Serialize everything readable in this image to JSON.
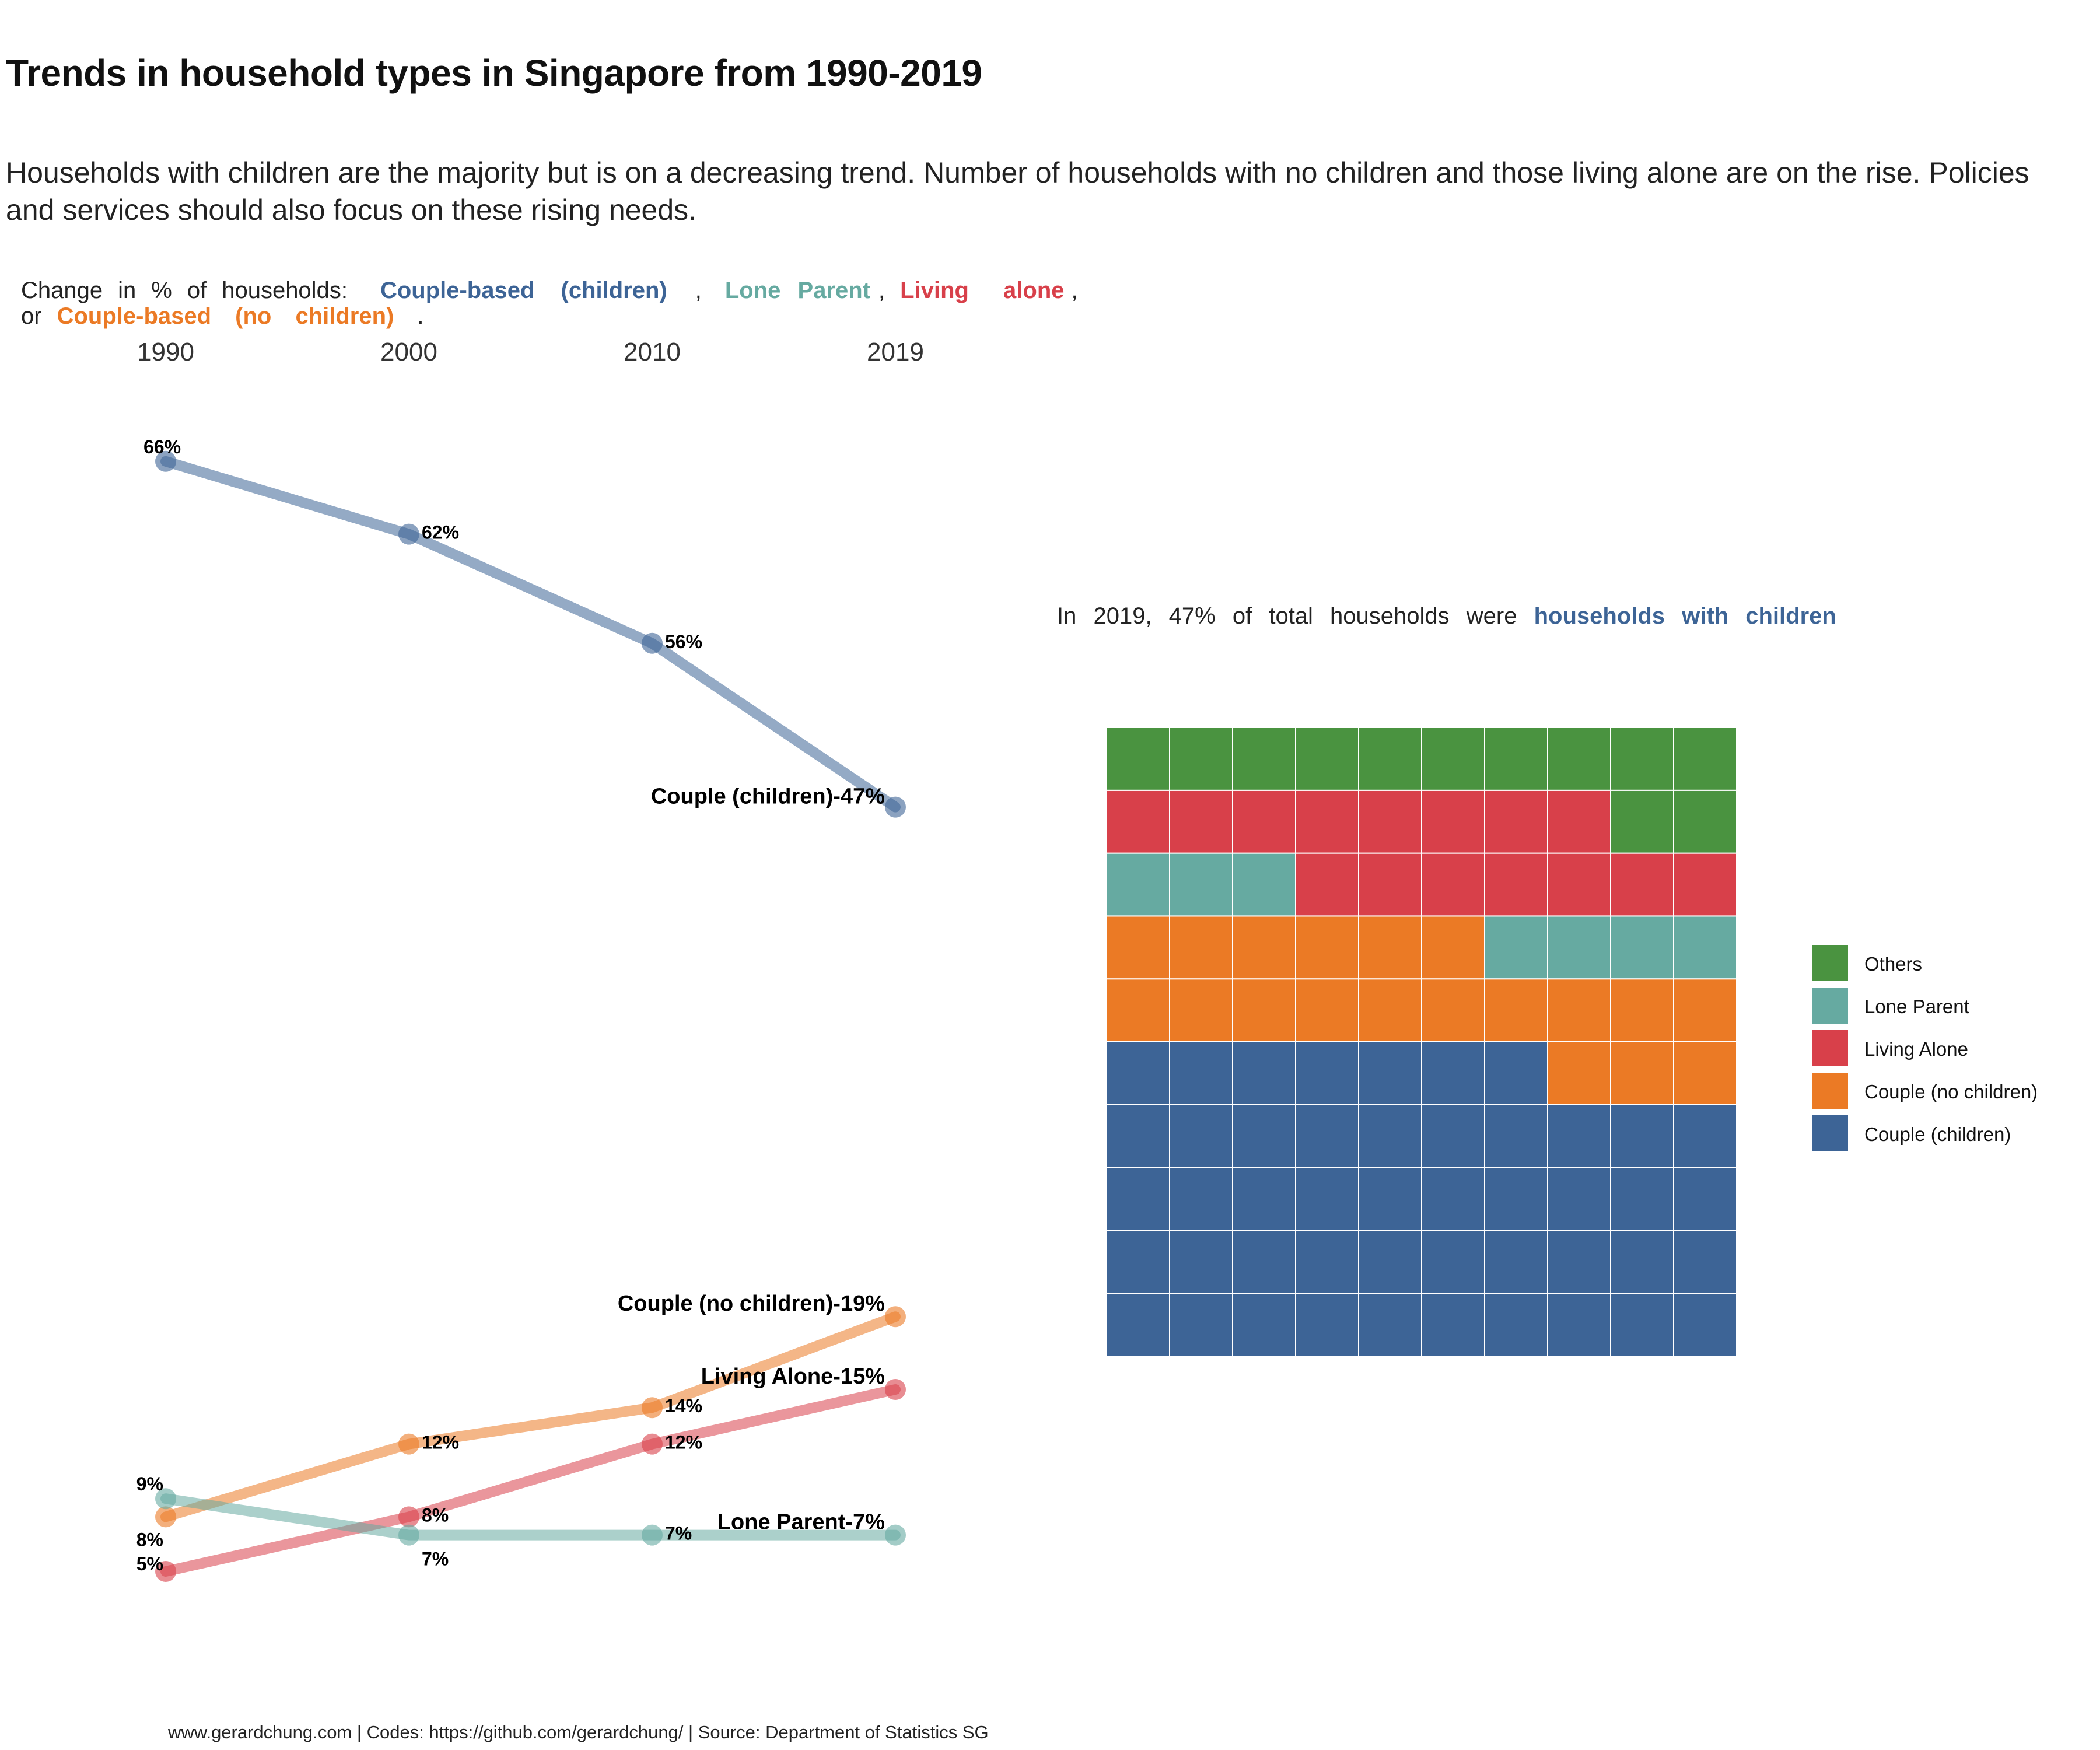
{
  "title": "Trends in household types in Singapore from 1990-2019",
  "subtitle": "Households with children are the majority but is on a decreasing trend. Number of households with no children and those living alone are on the rise. Policies and services should also focus on these rising needs.",
  "slope_caption": {
    "prefix": [
      "Change",
      "in",
      "%",
      "of",
      "households:"
    ],
    "couple_children": "Couple-based (children)",
    "sep1": ",",
    "lone_parent": "Lone Parent",
    "sep2": ",",
    "living_alone": "Living alone",
    "sep3": ",",
    "or": "or",
    "couple_no_children": "Couple-based (no children)",
    "end": "."
  },
  "waffle_caption": {
    "prefix": "In 2019, 47% of total households were",
    "highlight": "households with children"
  },
  "footer": "www.gerardchung.com | Codes: https://github.com/gerardchung/ | Source: Department of Statistics SG",
  "colors": {
    "couple_children": "#3D6496",
    "couple_no_children": "#EB7A25",
    "living_alone": "#D8404A",
    "lone_parent": "#66AAA1",
    "others": "#4A9340"
  },
  "chart_data": [
    {
      "type": "line",
      "x": [
        "1990",
        "2000",
        "2010",
        "2019"
      ],
      "series": [
        {
          "key": "couple_children",
          "name": "Couple (children)",
          "values": [
            66,
            62,
            56,
            47
          ],
          "point_labels": [
            "66%",
            "62%",
            "56%",
            "Couple (children)-47%"
          ]
        },
        {
          "key": "couple_no_children",
          "name": "Couple (no children)",
          "values": [
            8,
            12,
            14,
            19
          ],
          "point_labels": [
            "8%",
            "12%",
            "14%",
            "Couple (no children)-19%"
          ]
        },
        {
          "key": "living_alone",
          "name": "Living Alone",
          "values": [
            5,
            8,
            12,
            15
          ],
          "point_labels": [
            "5%",
            "8%",
            "12%",
            "Living Alone-15%"
          ]
        },
        {
          "key": "lone_parent",
          "name": "Lone Parent",
          "values": [
            9,
            7,
            7,
            7
          ],
          "point_labels": [
            "9%",
            "7%",
            "7%",
            "Lone Parent-7%"
          ]
        }
      ]
    },
    {
      "type": "waffle",
      "year": "2019",
      "rows": 10,
      "cols": 10,
      "categories": [
        {
          "key": "couple_children",
          "name": "Couple (children)",
          "count": 47
        },
        {
          "key": "couple_no_children",
          "name": "Couple (no children)",
          "count": 19
        },
        {
          "key": "lone_parent",
          "name": "Lone Parent",
          "count": 7
        },
        {
          "key": "living_alone",
          "name": "Living Alone",
          "count": 15
        },
        {
          "key": "others",
          "name": "Others",
          "count": 12
        }
      ],
      "legend": [
        "Others",
        "Lone Parent",
        "Living Alone",
        "Couple (no children)",
        "Couple (children)"
      ]
    }
  ]
}
